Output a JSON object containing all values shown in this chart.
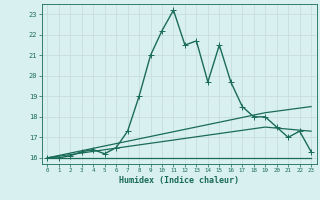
{
  "title": "",
  "xlabel": "Humidex (Indice chaleur)",
  "bg_color": "#d8f0f0",
  "grid_color": "#b8d8d8",
  "line_color": "#1a6b5a",
  "xlim": [
    -0.5,
    23.5
  ],
  "ylim": [
    15.7,
    23.5
  ],
  "yticks": [
    16,
    17,
    18,
    19,
    20,
    21,
    22,
    23
  ],
  "xticks": [
    0,
    1,
    2,
    3,
    4,
    5,
    6,
    7,
    8,
    9,
    10,
    11,
    12,
    13,
    14,
    15,
    16,
    17,
    18,
    19,
    20,
    21,
    22,
    23
  ],
  "series": [
    {
      "x": [
        0,
        1,
        2,
        3,
        4,
        5,
        6,
        7,
        8,
        9,
        10,
        11,
        12,
        13,
        14,
        15,
        16,
        17,
        18,
        19,
        20,
        21,
        22,
        23
      ],
      "y": [
        16.0,
        16.0,
        16.1,
        16.3,
        16.4,
        16.2,
        16.5,
        17.3,
        19.0,
        21.0,
        22.2,
        23.2,
        21.5,
        21.7,
        19.7,
        21.5,
        19.7,
        18.5,
        18.0,
        18.0,
        17.5,
        17.0,
        17.3,
        16.3
      ],
      "marker": "+",
      "linewidth": 1.0,
      "markersize": 4
    },
    {
      "x": [
        0,
        19,
        23
      ],
      "y": [
        16.0,
        18.2,
        18.5
      ],
      "marker": null,
      "linewidth": 0.9
    },
    {
      "x": [
        0,
        19,
        23
      ],
      "y": [
        16.0,
        17.5,
        17.3
      ],
      "marker": null,
      "linewidth": 0.9
    },
    {
      "x": [
        0,
        19,
        23
      ],
      "y": [
        16.0,
        16.0,
        16.0
      ],
      "marker": null,
      "linewidth": 0.9
    }
  ]
}
